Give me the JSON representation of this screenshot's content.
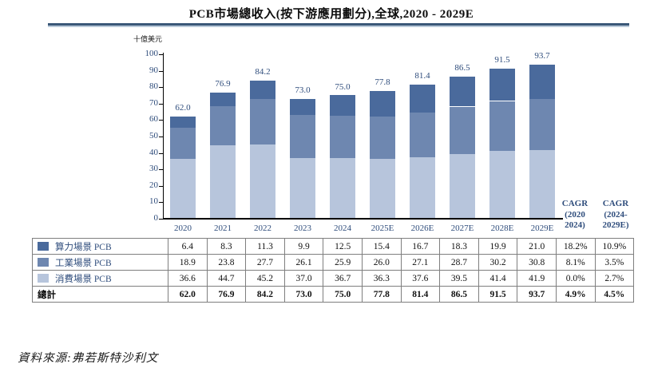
{
  "title": "PCB市場總收入(按下游應用劃分),全球,2020 - 2029E",
  "unit_label": "十億美元",
  "source": "資料來源:弗若斯特沙利文",
  "colors": {
    "compute": "#4a6a9c",
    "industrial": "#6e87b0",
    "consumer": "#b7c5dc",
    "axis_text": "#2f4d7c",
    "rule_dark": "#3b5878",
    "rule_light": "#b9cad9",
    "table_border": "#7f7f7f"
  },
  "cagr_headers": [
    {
      "key": "cagr-2020-2024",
      "lines": [
        "CAGR",
        "(2020",
        "2024)"
      ]
    },
    {
      "key": "cagr-2024-2029e",
      "lines": [
        "CAGR",
        "(2024-",
        "2029E)"
      ]
    }
  ],
  "chart_data": {
    "type": "bar",
    "stacked": true,
    "title": "PCB市場總收入(按下游應用劃分),全球,2020 - 2029E",
    "unit": "十億美元",
    "categories": [
      "2020",
      "2021",
      "2022",
      "2023",
      "2024",
      "2025E",
      "2026E",
      "2027E",
      "2028E",
      "2029E"
    ],
    "series": [
      {
        "key": "compute-pcb",
        "name": "算力場景 PCB",
        "color_key": "compute",
        "values": [
          6.4,
          8.3,
          11.3,
          9.9,
          12.5,
          15.4,
          16.7,
          18.3,
          19.9,
          21.0
        ]
      },
      {
        "key": "industrial-pcb",
        "name": "工業場景 PCB",
        "color_key": "industrial",
        "values": [
          18.9,
          23.8,
          27.7,
          26.1,
          25.9,
          26.0,
          27.1,
          28.7,
          30.2,
          30.8
        ]
      },
      {
        "key": "consumer-pcb",
        "name": "消費場景 PCB",
        "color_key": "consumer",
        "values": [
          36.6,
          44.7,
          45.2,
          37.0,
          36.7,
          36.3,
          37.6,
          39.5,
          41.4,
          41.9
        ]
      }
    ],
    "totals": [
      62.0,
      76.9,
      84.2,
      73.0,
      75.0,
      77.8,
      81.4,
      86.5,
      91.5,
      93.7
    ],
    "ylim": [
      0,
      100
    ],
    "ytick_step": 10,
    "grid": false,
    "legend_position": "table-rows-below-chart"
  },
  "table": {
    "rows": [
      {
        "key": "compute-pcb",
        "label": "算力場景 PCB",
        "swatch": "compute",
        "bold": false,
        "values": [
          "6.4",
          "8.3",
          "11.3",
          "9.9",
          "12.5",
          "15.4",
          "16.7",
          "18.3",
          "19.9",
          "21.0",
          "18.2%",
          "10.9%"
        ]
      },
      {
        "key": "industrial-pcb",
        "label": "工業場景 PCB",
        "swatch": "industrial",
        "bold": false,
        "values": [
          "18.9",
          "23.8",
          "27.7",
          "26.1",
          "25.9",
          "26.0",
          "27.1",
          "28.7",
          "30.2",
          "30.8",
          "8.1%",
          "3.5%"
        ]
      },
      {
        "key": "consumer-pcb",
        "label": "消費場景 PCB",
        "swatch": "consumer",
        "bold": false,
        "values": [
          "36.6",
          "44.7",
          "45.2",
          "37.0",
          "36.7",
          "36.3",
          "37.6",
          "39.5",
          "41.4",
          "41.9",
          "0.0%",
          "2.7%"
        ]
      },
      {
        "key": "total",
        "label": "總計",
        "swatch": null,
        "bold": true,
        "values": [
          "62.0",
          "76.9",
          "84.2",
          "73.0",
          "75.0",
          "77.8",
          "81.4",
          "86.5",
          "91.5",
          "93.7",
          "4.9%",
          "4.5%"
        ]
      }
    ]
  }
}
